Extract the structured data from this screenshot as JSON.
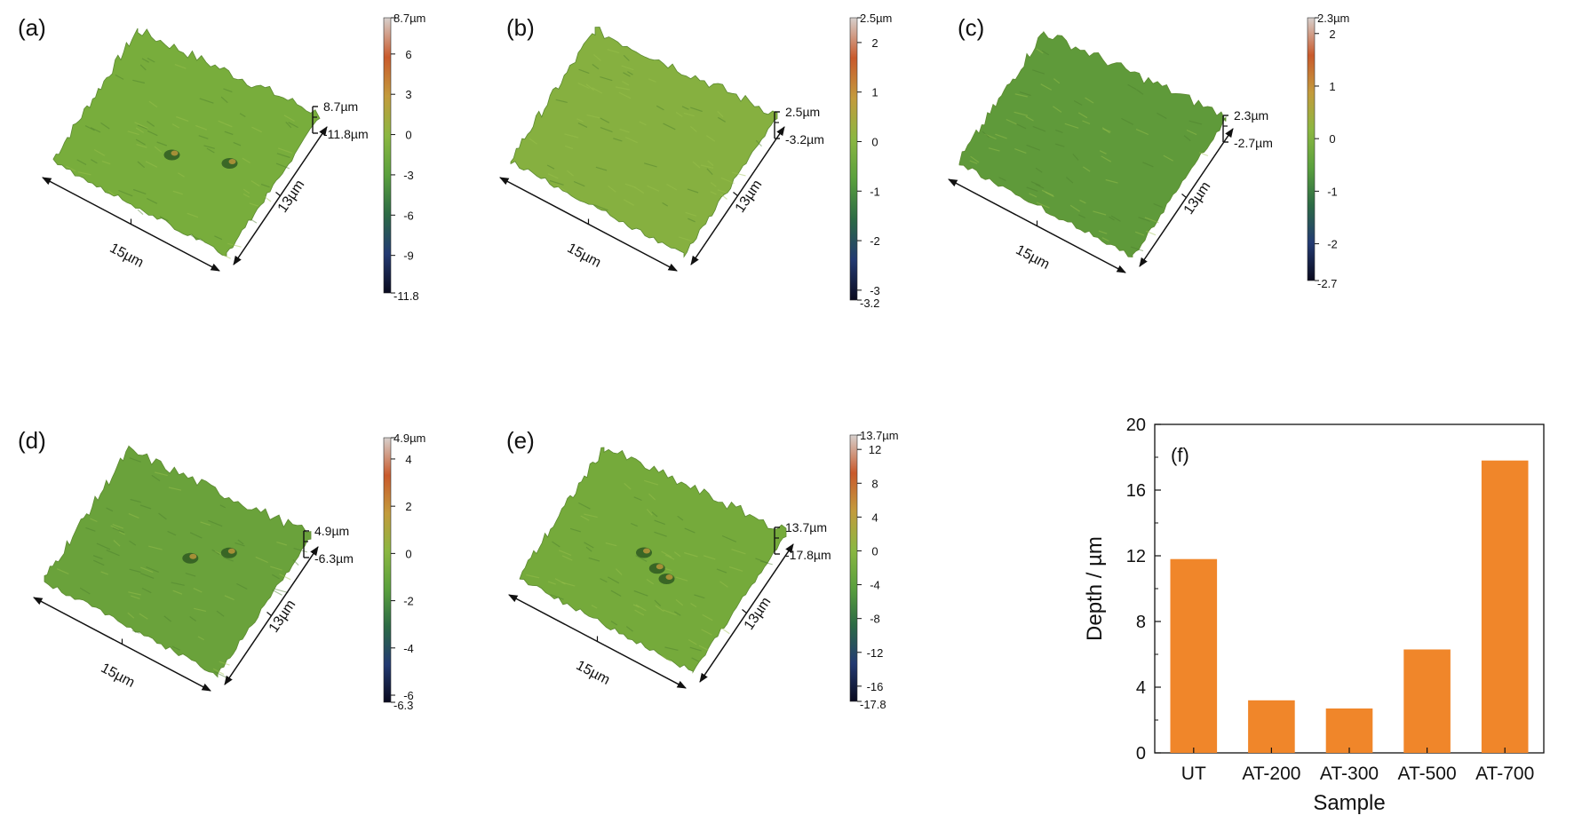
{
  "panels": [
    {
      "letter": "(a)",
      "z_top_label": "8.7µm",
      "z_bottom_label": "-11.8µm",
      "x_label": "15µm",
      "y_label": "13µm",
      "colorbar_max_label": "8.7µm",
      "colorbar_min_label": "-11.8",
      "colorbar_min": -11.8,
      "colorbar_max": 8.7,
      "colorbar_ticks": [
        6,
        3,
        0,
        -3,
        -6,
        -9
      ],
      "surface_color": "#78ad3c",
      "pits": [
        [
          0.48,
          0.42
        ],
        [
          0.75,
          0.55
        ]
      ]
    },
    {
      "letter": "(b)",
      "z_top_label": "2.5µm",
      "z_bottom_label": "-3.2µm",
      "x_label": "15µm",
      "y_label": "13µm",
      "colorbar_max_label": "2.5µm",
      "colorbar_min_label": "-3.2",
      "colorbar_min": -3.2,
      "colorbar_max": 2.5,
      "colorbar_ticks": [
        2,
        1,
        0,
        -1,
        -2,
        -3
      ],
      "surface_color": "#86b040",
      "pits": []
    },
    {
      "letter": "(c)",
      "z_top_label": "2.3µm",
      "z_bottom_label": "-2.7µm",
      "x_label": "15µm",
      "y_label": "13µm",
      "colorbar_max_label": "2.3µm",
      "colorbar_min_label": "-2.7",
      "colorbar_min": -2.7,
      "colorbar_max": 2.3,
      "colorbar_ticks": [
        2,
        1,
        0,
        -1,
        -2
      ],
      "surface_color": "#5f9a3a",
      "pits": []
    },
    {
      "letter": "(d)",
      "z_top_label": "4.9µm",
      "z_bottom_label": "-6.3µm",
      "x_label": "15µm",
      "y_label": "13µm",
      "colorbar_max_label": "4.9µm",
      "colorbar_min_label": "-6.3",
      "colorbar_min": -6.3,
      "colorbar_max": 4.9,
      "colorbar_ticks": [
        4,
        2,
        0,
        -2,
        -4,
        -6
      ],
      "surface_color": "#6aa23b",
      "pits": [
        [
          0.55,
          0.6
        ],
        [
          0.7,
          0.75
        ]
      ]
    },
    {
      "letter": "(e)",
      "z_top_label": "13.7µm",
      "z_bottom_label": "-17.8µm",
      "x_label": "15µm",
      "y_label": "13µm",
      "colorbar_max_label": "13.7µm",
      "colorbar_min_label": "-17.8",
      "colorbar_min": -17.8,
      "colorbar_max": 13.7,
      "colorbar_ticks": [
        12,
        8,
        4,
        0,
        -4,
        -8,
        -12,
        -16
      ],
      "surface_color": "#75aa3b",
      "pits": [
        [
          0.45,
          0.55
        ],
        [
          0.55,
          0.5
        ],
        [
          0.62,
          0.47
        ]
      ]
    }
  ],
  "colormap": [
    "#0a0a1e",
    "#233a72",
    "#2c6a45",
    "#5aa03d",
    "#8bb741",
    "#c39b3c",
    "#c95a2c",
    "#d7d0cd"
  ],
  "chart_data": {
    "type": "bar",
    "panel_label": "(f)",
    "categories": [
      "UT",
      "AT-200",
      "AT-300",
      "AT-500",
      "AT-700"
    ],
    "values": [
      11.8,
      3.2,
      2.7,
      6.3,
      17.8
    ],
    "xlabel": "Sample",
    "ylabel": "Depth / µm",
    "ylim": [
      0,
      20
    ],
    "yticks": [
      0,
      4,
      8,
      12,
      16,
      20
    ],
    "bar_color": "#f0862a",
    "grid": false,
    "legend": "none"
  }
}
